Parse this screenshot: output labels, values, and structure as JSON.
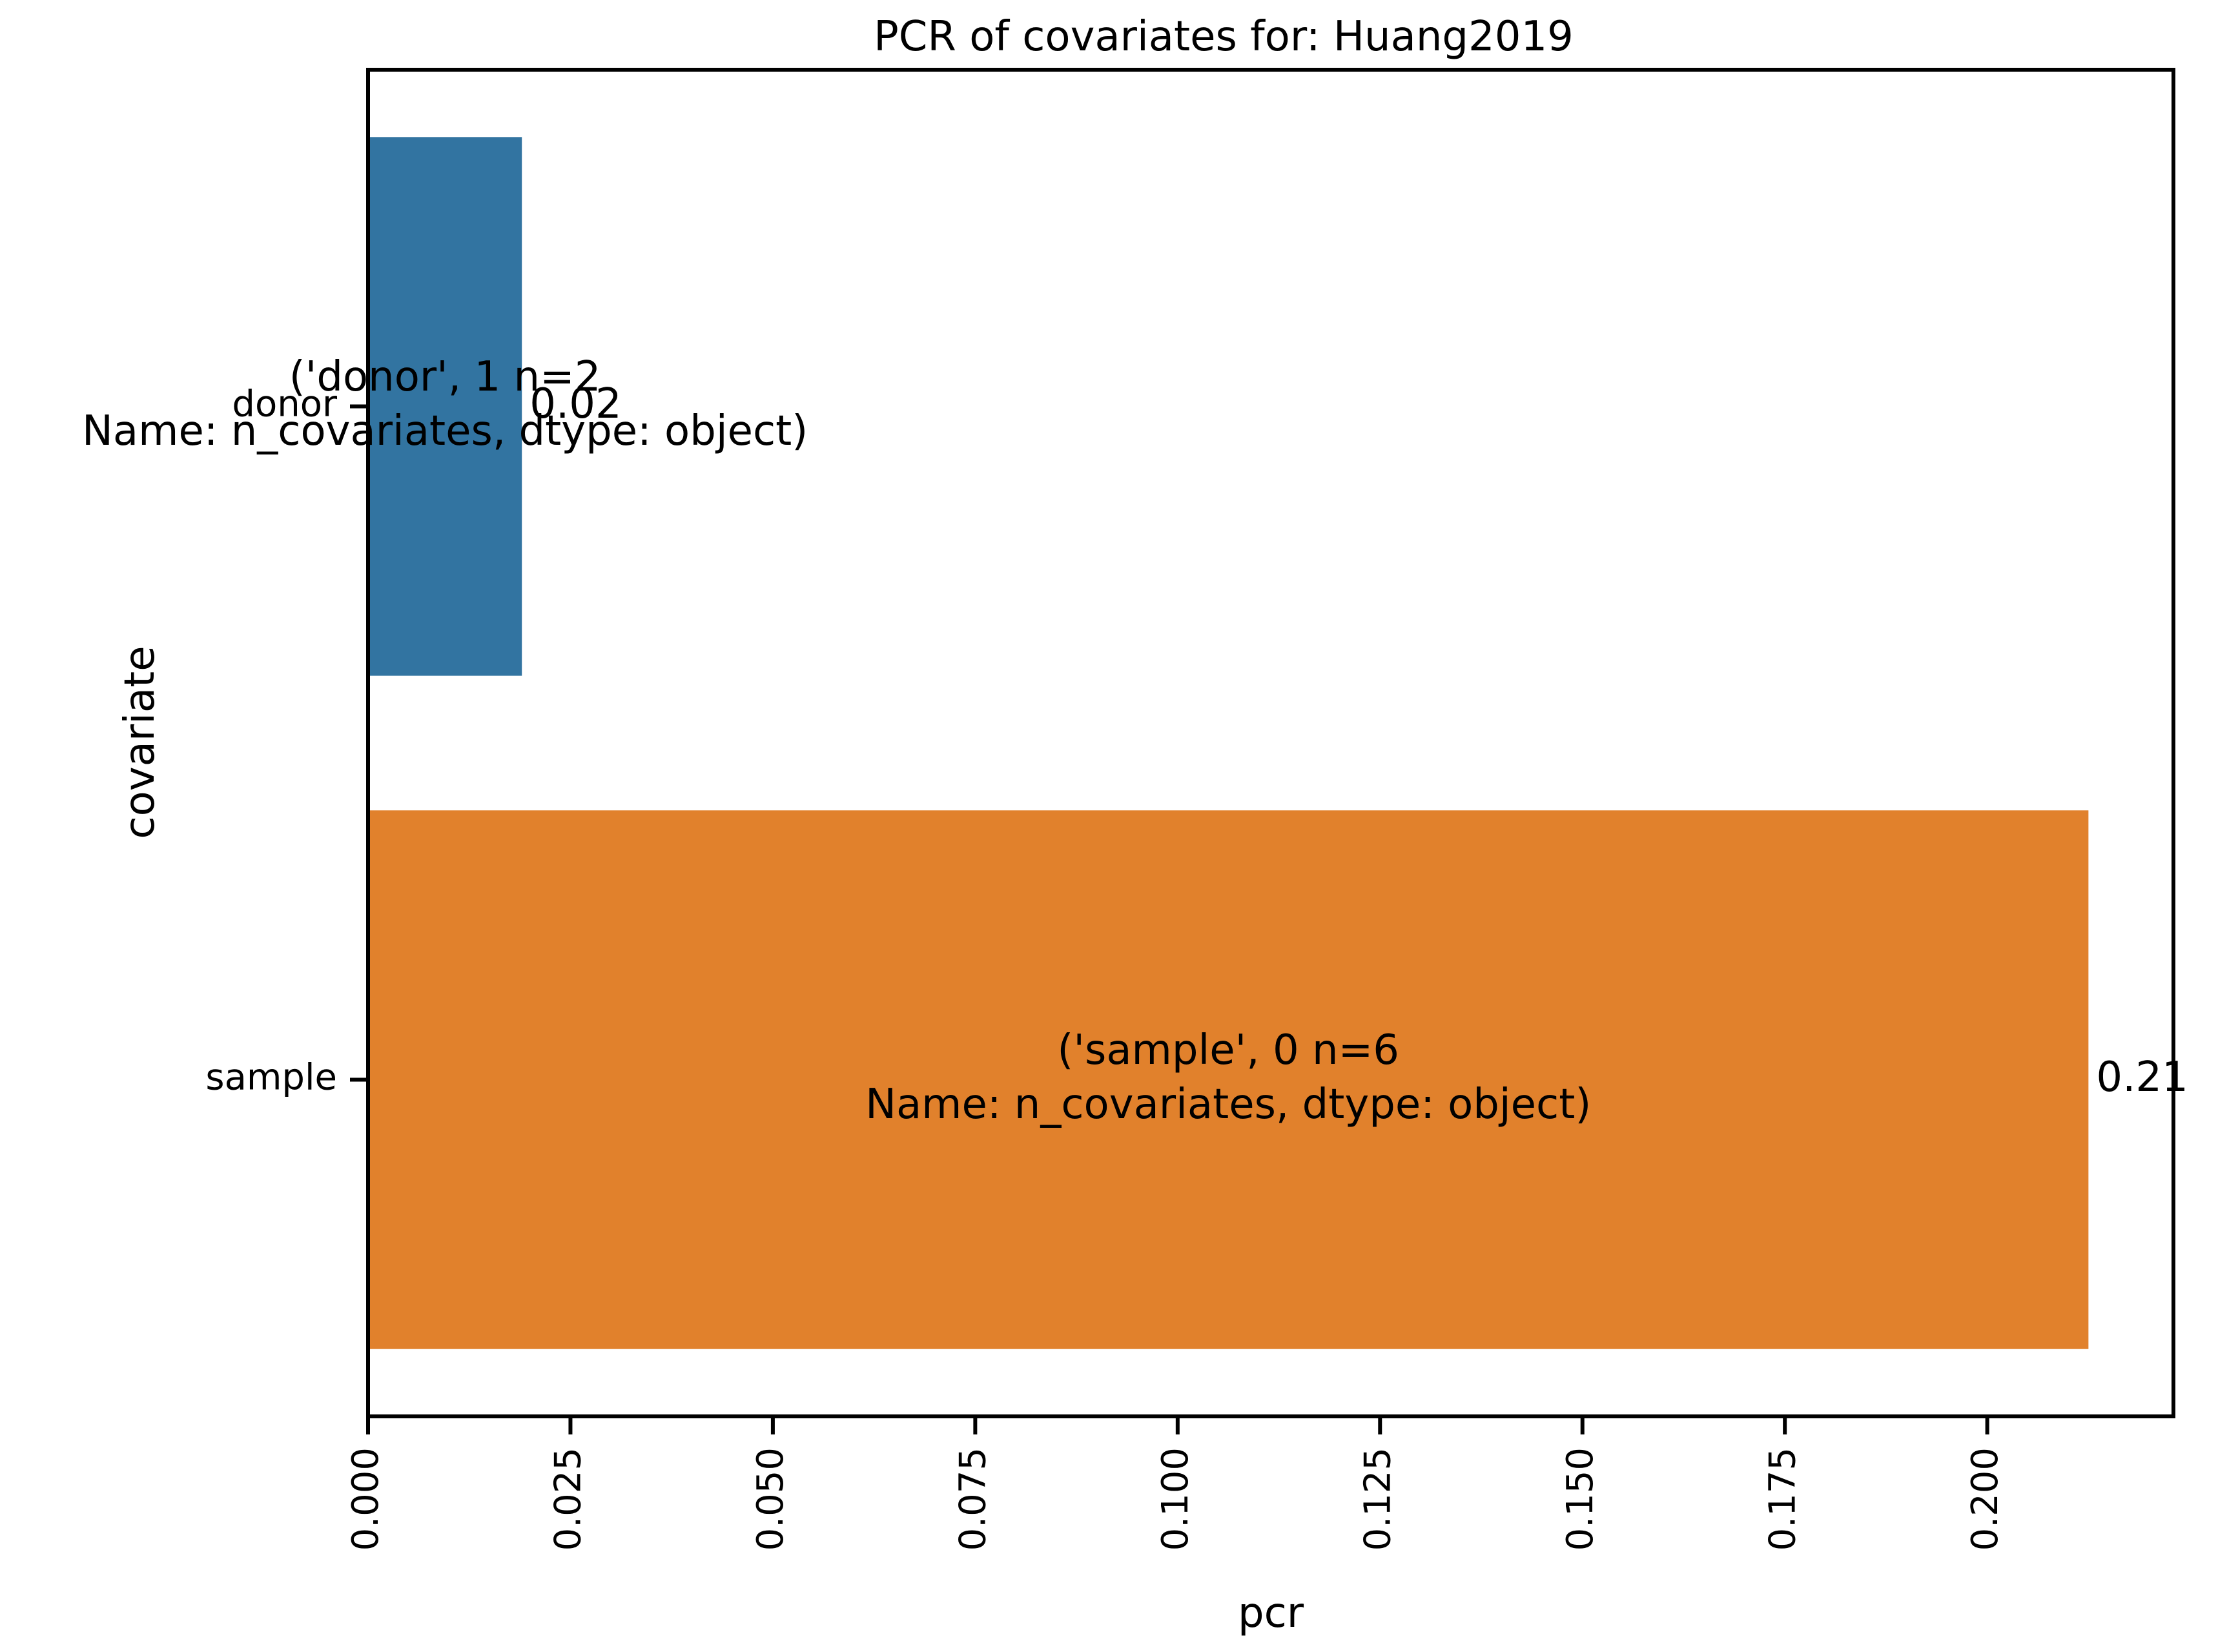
{
  "chart_data": {
    "type": "bar",
    "orientation": "horizontal",
    "title": "PCR of covariates for: Huang2019",
    "xlabel": "pcr",
    "ylabel": "covariate",
    "categories": [
      "donor",
      "sample"
    ],
    "values": [
      0.019,
      0.2125
    ],
    "value_labels": [
      "0.02",
      "0.21"
    ],
    "annotations": [
      [
        "('donor', 1    n=2",
        "Name: n_covariates, dtype: object)"
      ],
      [
        "('sample', 0    n=6",
        "Name: n_covariates, dtype: object)"
      ]
    ],
    "colors": [
      "#3274a1",
      "#e1812c"
    ],
    "xlim": [
      0,
      0.223
    ],
    "xticks": [
      0.0,
      0.025,
      0.05,
      0.075,
      0.1,
      0.125,
      0.15,
      0.175,
      0.2
    ],
    "xtick_labels": [
      "0.000",
      "0.025",
      "0.050",
      "0.075",
      "0.100",
      "0.125",
      "0.150",
      "0.175",
      "0.200"
    ],
    "grid": false,
    "legend": "none"
  }
}
